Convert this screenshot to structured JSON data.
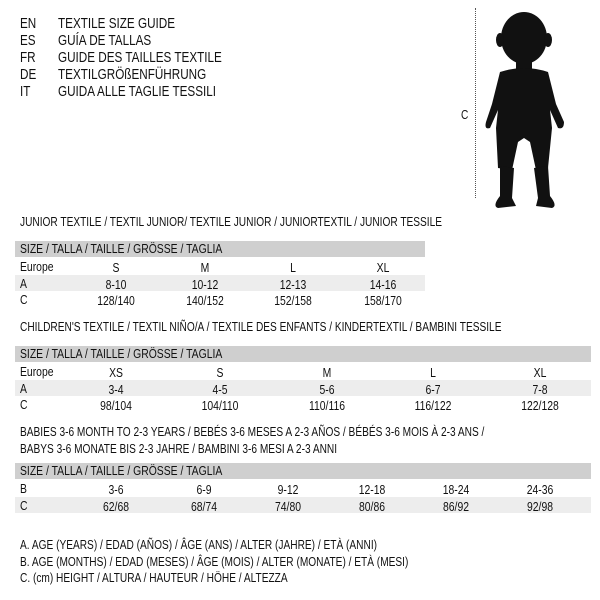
{
  "header": [
    {
      "code": "EN",
      "text": "TEXTILE SIZE GUIDE"
    },
    {
      "code": "ES",
      "text": "GUÍA DE TALLAS"
    },
    {
      "code": "FR",
      "text": "GUIDE DES TAILLES TEXTILE"
    },
    {
      "code": "DE",
      "text": "TEXTILGRÖßENFÜHRUNG"
    },
    {
      "code": "IT",
      "text": "GUIDA ALLE TAGLIE TESSILI"
    }
  ],
  "figure": {
    "measure_label": "C",
    "icon": "child-silhouette-icon"
  },
  "size_header": "SIZE / TALLA / TAILLE / GRÖSSE / TAGLIA",
  "sections": [
    {
      "title": "JUNIOR TEXTILE / TEXTIL JUNIOR/ TEXTILE JUNIOR / JUNIORTEXTIL / JUNIOR TESSILE",
      "rows": [
        {
          "label": "Europe",
          "values": [
            "S",
            "M",
            "L",
            "XL"
          ]
        },
        {
          "label": "A",
          "values": [
            "8-10",
            "10-12",
            "12-13",
            "14-16"
          ]
        },
        {
          "label": "C",
          "values": [
            "128/140",
            "140/152",
            "152/158",
            "158/170"
          ]
        }
      ]
    },
    {
      "title": "CHILDREN'S TEXTILE / TEXTIL NIÑO/A / TEXTILE DES ENFANTS / KINDERTEXTIL / BAMBINI TESSILE",
      "rows": [
        {
          "label": "Europe",
          "values": [
            "XS",
            "S",
            "M",
            "L",
            "XL"
          ]
        },
        {
          "label": "A",
          "values": [
            "3-4",
            "4-5",
            "5-6",
            "6-7",
            "7-8"
          ]
        },
        {
          "label": "C",
          "values": [
            "98/104",
            "104/110",
            "110/116",
            "116/122",
            "122/128"
          ]
        }
      ]
    },
    {
      "title": "BABIES 3-6 MONTH TO 2-3 YEARS / BEBÉS 3-6 MESES A 2-3 AÑOS / BÉBÉS 3-6 MOIS À 2-3 ANS /",
      "title2": "BABYS 3-6 MONATE BIS 2-3 JAHRE / BAMBINI 3-6 MESI A 2-3 ANNI",
      "rows": [
        {
          "label": "B",
          "values": [
            "3-6",
            "6-9",
            "9-12",
            "12-18",
            "18-24",
            "24-36"
          ]
        },
        {
          "label": "C",
          "values": [
            "62/68",
            "68/74",
            "74/80",
            "80/86",
            "86/92",
            "92/98"
          ]
        }
      ]
    }
  ],
  "legend": [
    "A. AGE (YEARS) / EDAD (AÑOS) / ÂGE (ANS) / ALTER (JAHRE) / ETÀ (ANNI)",
    "B. AGE (MONTHS) / EDAD (MESES) / ÂGE (MOIS) / ALTER (MONATE) / ETÀ (MESI)",
    "C. (cm) HEIGHT / ALTURA / HAUTEUR / HÖHE / ALTEZZA"
  ],
  "colors": {
    "header_bar": "#cfcfcf",
    "row_shade": "#ededed",
    "text": "#111111"
  }
}
